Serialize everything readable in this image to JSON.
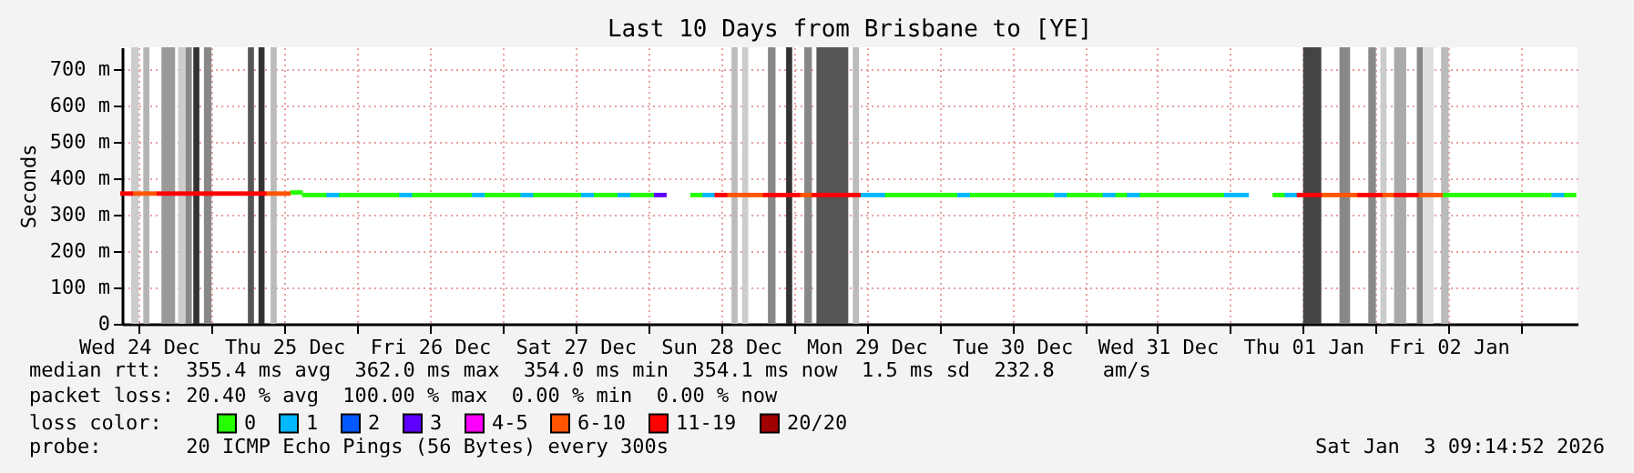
{
  "chart_data": {
    "type": "scatter",
    "title": "Last 10 Days from Brisbane to [YE]",
    "ylabel": "Seconds",
    "legend_title": "loss color:",
    "legend": "bottom",
    "marker": "square",
    "grid": true,
    "xlim": [
      "2025-12-24T09:15",
      "2026-01-03T09:15"
    ],
    "xticks": [
      {
        "value": "2025-12-24T12:00",
        "label": "Wed 24 Dec"
      },
      {
        "value": "2025-12-25T00:00",
        "label": null
      },
      {
        "value": "2025-12-25T12:00",
        "label": "Thu 25 Dec"
      },
      {
        "value": "2025-12-26T00:00",
        "label": null
      },
      {
        "value": "2025-12-26T12:00",
        "label": "Fri 26 Dec"
      },
      {
        "value": "2025-12-27T00:00",
        "label": null
      },
      {
        "value": "2025-12-27T12:00",
        "label": "Sat 27 Dec"
      },
      {
        "value": "2025-12-28T00:00",
        "label": null
      },
      {
        "value": "2025-12-28T12:00",
        "label": "Sun 28 Dec"
      },
      {
        "value": "2025-12-29T00:00",
        "label": null
      },
      {
        "value": "2025-12-29T12:00",
        "label": "Mon 29 Dec"
      },
      {
        "value": "2025-12-30T00:00",
        "label": null
      },
      {
        "value": "2025-12-30T12:00",
        "label": "Tue 30 Dec"
      },
      {
        "value": "2025-12-31T00:00",
        "label": null
      },
      {
        "value": "2025-12-31T12:00",
        "label": "Wed 31 Dec"
      },
      {
        "value": "2026-01-01T00:00",
        "label": null
      },
      {
        "value": "2026-01-01T12:00",
        "label": "Thu 01 Jan"
      },
      {
        "value": "2026-01-02T00:00",
        "label": null
      },
      {
        "value": "2026-01-02T12:00",
        "label": "Fri 02 Jan"
      },
      {
        "value": "2026-01-03T00:00",
        "label": null
      }
    ],
    "ylim": [
      0,
      760
    ],
    "yticks": [
      0,
      {
        "value": 100,
        "label": "100 m"
      },
      {
        "value": 200,
        "label": "200 m"
      },
      {
        "value": 300,
        "label": "300 m"
      },
      {
        "value": 400,
        "label": "400 m"
      },
      {
        "value": 500,
        "label": "500 m"
      },
      {
        "value": 600,
        "label": "600 m"
      },
      {
        "value": 700,
        "label": "700 m"
      }
    ],
    "series": [
      {
        "name": "0",
        "color": "#26ff00",
        "x": [
          "2025-12-25T14:00",
          "2025-12-25T16:00",
          "2025-12-25T18:00",
          "2025-12-25T22:00",
          "2025-12-26T00:00",
          "2025-12-26T02:00",
          "2025-12-26T04:00",
          "2025-12-26T06:00",
          "2025-12-26T10:00",
          "2025-12-26T12:00",
          "2025-12-26T14:00",
          "2025-12-26T16:00",
          "2025-12-26T18:00",
          "2025-12-26T22:00",
          "2025-12-27T00:00",
          "2025-12-27T02:00",
          "2025-12-27T06:00",
          "2025-12-27T08:00",
          "2025-12-27T10:00",
          "2025-12-27T12:00",
          "2025-12-27T16:00",
          "2025-12-27T18:00",
          "2025-12-27T22:00",
          "2025-12-28T00:00",
          "2025-12-28T08:00",
          "2025-12-29T16:00",
          "2025-12-29T18:00",
          "2025-12-29T20:00",
          "2025-12-29T22:00",
          "2025-12-30T00:00",
          "2025-12-30T02:00",
          "2025-12-30T06:00",
          "2025-12-30T08:00",
          "2025-12-30T10:00",
          "2025-12-30T12:00",
          "2025-12-30T14:00",
          "2025-12-30T16:00",
          "2025-12-30T18:00",
          "2025-12-30T22:00",
          "2025-12-31T00:00",
          "2025-12-31T02:00",
          "2025-12-31T06:00",
          "2025-12-31T10:00",
          "2025-12-31T12:00",
          "2025-12-31T14:00",
          "2025-12-31T16:00",
          "2025-12-31T18:00",
          "2025-12-31T20:00",
          "2025-12-31T22:00",
          "2026-01-01T08:00",
          "2026-01-02T12:00",
          "2026-01-02T14:00",
          "2026-01-02T16:00",
          "2026-01-02T18:00",
          "2026-01-02T20:00",
          "2026-01-02T22:00",
          "2026-01-03T00:00",
          "2026-01-03T02:00",
          "2026-01-03T04:00",
          "2026-01-03T08:00"
        ],
        "values": [
          361,
          354,
          354,
          354,
          354,
          354,
          354,
          354,
          354,
          354,
          354,
          354,
          354,
          354,
          354,
          354,
          354,
          354,
          354,
          354,
          354,
          354,
          354,
          354,
          354,
          354,
          354,
          354,
          354,
          354,
          354,
          354,
          354,
          354,
          354,
          354,
          354,
          354,
          354,
          354,
          354,
          354,
          354,
          354,
          354,
          354,
          354,
          354,
          354,
          354,
          354,
          354,
          354,
          354,
          354,
          354,
          354,
          354,
          354,
          354
        ]
      },
      {
        "name": "1",
        "color": "#00b8ff",
        "x": [
          "2025-12-25T20:00",
          "2025-12-26T08:00",
          "2025-12-26T20:00",
          "2025-12-27T04:00",
          "2025-12-27T14:00",
          "2025-12-27T20:00",
          "2025-12-28T10:00",
          "2025-12-29T12:00",
          "2025-12-29T14:00",
          "2025-12-30T04:00",
          "2025-12-30T20:00",
          "2025-12-31T04:00",
          "2025-12-31T08:00",
          "2026-01-01T00:00",
          "2026-01-01T02:00",
          "2026-01-01T10:00",
          "2026-01-03T06:00"
        ],
        "values": [
          354,
          354,
          354,
          354,
          354,
          354,
          354,
          354,
          354,
          354,
          354,
          354,
          354,
          354,
          354,
          354,
          354
        ]
      },
      {
        "name": "2",
        "color": "#0059ff"
      },
      {
        "name": "3",
        "color": "#5e00ff",
        "x": [
          "2025-12-28T02:00"
        ],
        "values": [
          354
        ]
      },
      {
        "name": "4-5",
        "color": "#ff00ff"
      },
      {
        "name": "6-10",
        "color": "#ff5500",
        "x": [
          "2025-12-24T12:00",
          "2025-12-24T14:00",
          "2025-12-25T10:00",
          "2025-12-25T12:00",
          "2025-12-28T14:00",
          "2025-12-28T16:00",
          "2025-12-28T18:00",
          "2025-12-29T02:00",
          "2026-01-01T16:00",
          "2026-01-01T18:00",
          "2026-01-01T20:00",
          "2026-01-02T02:00",
          "2026-01-02T08:00",
          "2026-01-02T10:00"
        ],
        "values": [
          358,
          358,
          358,
          358,
          354,
          354,
          354,
          354,
          354,
          354,
          354,
          354,
          354,
          354
        ]
      },
      {
        "name": "11-19",
        "color": "#ff0000",
        "x": [
          "2025-12-24T10:00",
          "2025-12-24T16:00",
          "2025-12-24T18:00",
          "2025-12-24T20:00",
          "2025-12-24T22:00",
          "2025-12-25T00:00",
          "2025-12-25T02:00",
          "2025-12-25T04:00",
          "2025-12-25T06:00",
          "2025-12-25T08:00",
          "2025-12-28T12:00",
          "2025-12-28T20:00",
          "2025-12-28T22:00",
          "2025-12-29T00:00",
          "2025-12-29T04:00",
          "2025-12-29T06:00",
          "2025-12-29T08:00",
          "2025-12-29T10:00",
          "2026-01-01T12:00",
          "2026-01-01T14:00",
          "2026-01-01T22:00",
          "2026-01-02T00:00",
          "2026-01-02T04:00",
          "2026-01-02T06:00"
        ],
        "values": [
          358,
          358,
          358,
          358,
          358,
          358,
          358,
          358,
          358,
          358,
          354,
          354,
          354,
          354,
          354,
          354,
          354,
          354,
          354,
          354,
          354,
          354,
          354,
          354
        ]
      },
      {
        "name": "20/20",
        "color": "#a10000"
      }
    ],
    "bands": [
      {
        "axis": "x",
        "from": "2025-12-24T10:45",
        "to": "2025-12-24T12:00",
        "color": "#cccccc"
      },
      {
        "axis": "x",
        "from": "2025-12-24T12:45",
        "to": "2025-12-24T13:45",
        "color": "#b4b4b4"
      },
      {
        "axis": "x",
        "from": "2025-12-24T15:45",
        "to": "2025-12-24T18:00",
        "color": "#999999"
      },
      {
        "axis": "x",
        "from": "2025-12-24T18:30",
        "to": "2025-12-24T19:45",
        "color": "#cccccc"
      },
      {
        "axis": "x",
        "from": "2025-12-24T19:45",
        "to": "2025-12-24T20:45",
        "color": "#888888"
      },
      {
        "axis": "x",
        "from": "2025-12-24T21:00",
        "to": "2025-12-24T22:00",
        "color": "#333333"
      },
      {
        "axis": "x",
        "from": "2025-12-24T22:45",
        "to": "2025-12-25T00:00",
        "color": "#888888"
      },
      {
        "axis": "x",
        "from": "2025-12-25T06:00",
        "to": "2025-12-25T07:00",
        "color": "#555555"
      },
      {
        "axis": "x",
        "from": "2025-12-25T07:45",
        "to": "2025-12-25T08:45",
        "color": "#333333"
      },
      {
        "axis": "x",
        "from": "2025-12-25T09:45",
        "to": "2025-12-25T10:45",
        "color": "#bbbbbb"
      },
      {
        "axis": "x",
        "from": "2025-12-28T13:45",
        "to": "2025-12-28T14:45",
        "color": "#bbbbbb"
      },
      {
        "axis": "x",
        "from": "2025-12-28T15:30",
        "to": "2025-12-28T16:30",
        "color": "#cccccc"
      },
      {
        "axis": "x",
        "from": "2025-12-28T19:45",
        "to": "2025-12-28T21:00",
        "color": "#888888"
      },
      {
        "axis": "x",
        "from": "2025-12-28T22:45",
        "to": "2025-12-28T23:45",
        "color": "#333333"
      },
      {
        "axis": "x",
        "from": "2025-12-29T01:45",
        "to": "2025-12-29T03:00",
        "color": "#888888"
      },
      {
        "axis": "x",
        "from": "2025-12-29T03:45",
        "to": "2025-12-29T09:00",
        "color": "#555555"
      },
      {
        "axis": "x",
        "from": "2025-12-29T09:45",
        "to": "2025-12-29T10:45",
        "color": "#bbbbbb"
      },
      {
        "axis": "x",
        "from": "2026-01-01T12:00",
        "to": "2026-01-01T15:00",
        "color": "#444444"
      },
      {
        "axis": "x",
        "from": "2026-01-01T18:00",
        "to": "2026-01-01T19:45",
        "color": "#888888"
      },
      {
        "axis": "x",
        "from": "2026-01-01T22:45",
        "to": "2026-01-02T00:00",
        "color": "#888888"
      },
      {
        "axis": "x",
        "from": "2026-01-02T00:45",
        "to": "2026-01-02T01:45",
        "color": "#cccccc"
      },
      {
        "axis": "x",
        "from": "2026-01-02T03:00",
        "to": "2026-01-02T05:00",
        "color": "#aaaaaa"
      },
      {
        "axis": "x",
        "from": "2026-01-02T06:45",
        "to": "2026-01-02T07:45",
        "color": "#888888"
      },
      {
        "axis": "x",
        "from": "2026-01-02T07:45",
        "to": "2026-01-02T09:30",
        "color": "#dddddd"
      },
      {
        "axis": "x",
        "from": "2026-01-02T10:45",
        "to": "2026-01-02T12:00",
        "color": "#bbbbbb"
      }
    ],
    "annotations": [
      "median rtt:  355.4 ms avg  362.0 ms max  354.0 ms min  354.1 ms now  1.5 ms sd  232.8    am/s",
      "packet loss: 20.40 % avg  100.00 % max  0.00 % min  0.00 % now",
      "probe:       20 ICMP Echo Pings (56 Bytes) every 300s",
      "Sat Jan  3 09:14:52 2026"
    ]
  }
}
